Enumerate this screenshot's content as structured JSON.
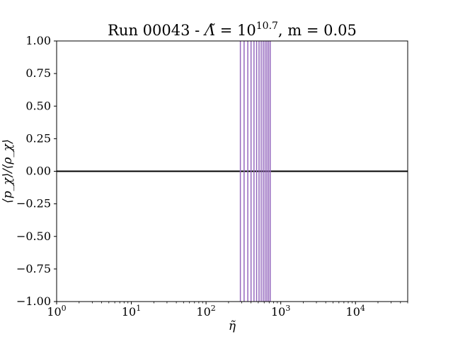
{
  "chart_data": {
    "type": "line",
    "title": {
      "prefix": "Run 00043 - ",
      "lambda_symbol": "Λ̃",
      "equals_ten": " = 10",
      "lambda_exponent": "10.7",
      "m_part": ", m = 0.05"
    },
    "xlabel": "η̃",
    "ylabel": "⟨p_χ⟩/⟨ρ_χ⟩",
    "xscale": "log",
    "xlim": [
      1,
      50000
    ],
    "ylim": [
      -1.0,
      1.0
    ],
    "x_major_ticks": [
      {
        "value": 1,
        "base": "10",
        "exp": "0"
      },
      {
        "value": 10,
        "base": "10",
        "exp": "1"
      },
      {
        "value": 100,
        "base": "10",
        "exp": "2"
      },
      {
        "value": 1000,
        "base": "10",
        "exp": "3"
      },
      {
        "value": 10000,
        "base": "10",
        "exp": "4"
      }
    ],
    "y_ticks": [
      {
        "value": 1.0,
        "label": "1.00"
      },
      {
        "value": 0.75,
        "label": "0.75"
      },
      {
        "value": 0.5,
        "label": "0.50"
      },
      {
        "value": 0.25,
        "label": "0.25"
      },
      {
        "value": 0.0,
        "label": "0.00"
      },
      {
        "value": -0.25,
        "label": "−0.25"
      },
      {
        "value": -0.5,
        "label": "−0.50"
      },
      {
        "value": -0.75,
        "label": "−0.75"
      },
      {
        "value": -1.0,
        "label": "−1.00"
      }
    ],
    "grid": false,
    "series": [
      {
        "kind": "hline",
        "y": 0.0,
        "color": "#000000"
      },
      {
        "kind": "vlines",
        "color": "#9467bd",
        "x": [
          288,
          323,
          362,
          400,
          438,
          475,
          512,
          547,
          582,
          617,
          652,
          687,
          722
        ]
      }
    ]
  }
}
